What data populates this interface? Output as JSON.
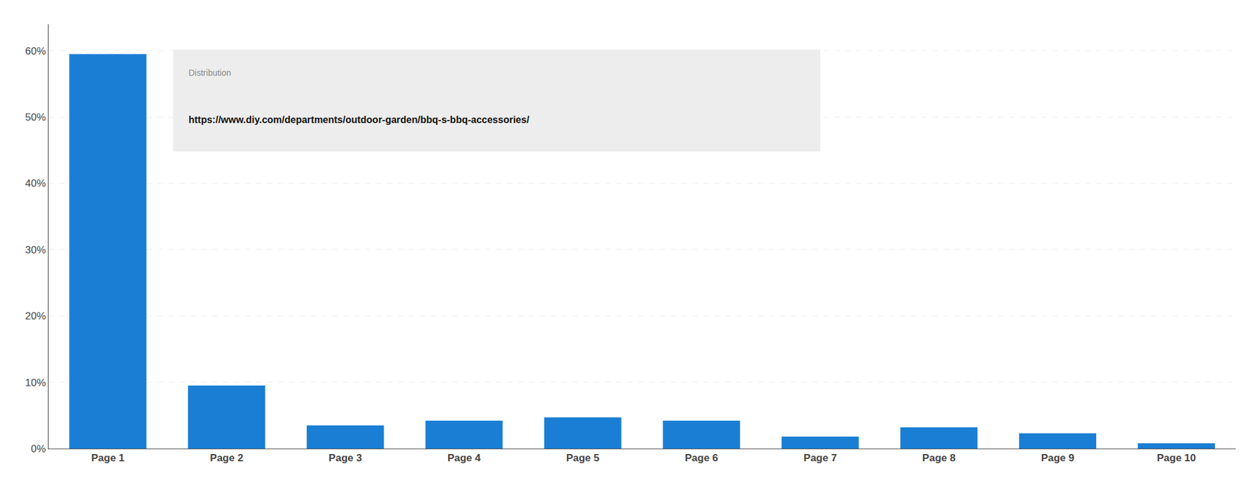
{
  "chart_data": {
    "type": "bar",
    "categories": [
      "Page 1",
      "Page 2",
      "Page 3",
      "Page 4",
      "Page 5",
      "Page 6",
      "Page 7",
      "Page 8",
      "Page 9",
      "Page 10"
    ],
    "values": [
      59.5,
      9.5,
      3.5,
      4.2,
      4.7,
      4.2,
      1.8,
      3.2,
      2.3,
      0.8
    ],
    "color": "#1a7fd4",
    "ylim": [
      0,
      64
    ],
    "yticks": [
      {
        "value": 0,
        "label": "0%"
      },
      {
        "value": 10,
        "label": "10%"
      },
      {
        "value": 20,
        "label": "20%"
      },
      {
        "value": 30,
        "label": "30%"
      },
      {
        "value": 40,
        "label": "40%"
      },
      {
        "value": 50,
        "label": "50%"
      },
      {
        "value": 60,
        "label": "60%"
      }
    ],
    "grid": true,
    "annotations": [
      "Distribution",
      "https://www.diy.com/departments/outdoor-garden/bbq-s-bbq-accessories/"
    ]
  }
}
